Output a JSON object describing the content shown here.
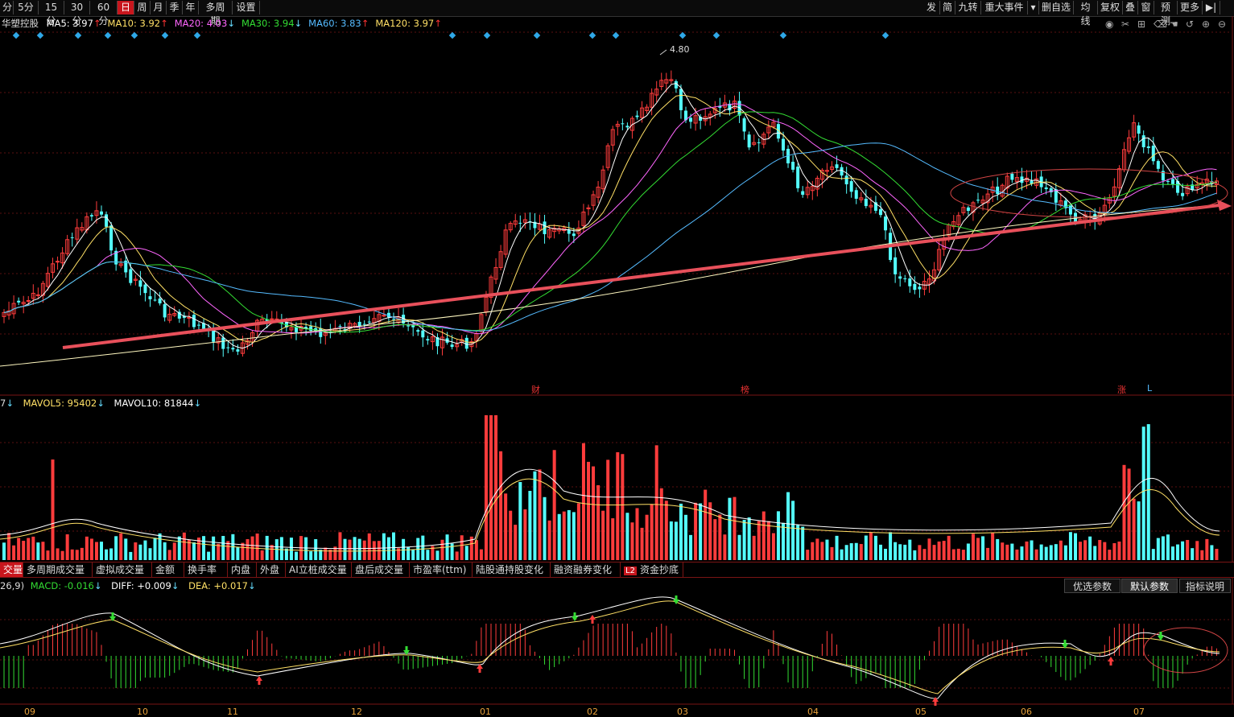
{
  "period_tabs": [
    {
      "label": "分",
      "active": false
    },
    {
      "label": "5分",
      "active": false
    },
    {
      "label": "15分",
      "active": false
    },
    {
      "label": "30分",
      "active": false
    },
    {
      "label": "60分",
      "active": false
    },
    {
      "label": "日",
      "active": true
    },
    {
      "label": "周",
      "active": false
    },
    {
      "label": "月",
      "active": false
    },
    {
      "label": "季",
      "active": false
    },
    {
      "label": "年",
      "active": false
    },
    {
      "label": "多周期",
      "active": false
    },
    {
      "label": "设置",
      "active": false
    }
  ],
  "right_toolbar": [
    "发",
    "简",
    "九转",
    "重大事件",
    "▾",
    "删自选",
    "均线",
    "复权",
    "叠",
    "窗",
    "预测",
    "更多",
    "▶|"
  ],
  "stock_name": "华塑控股",
  "ma_values": [
    {
      "label": "MA5: 3.97",
      "arrow": "↑",
      "color": "#ffffff",
      "arrow_color": "#ff3333"
    },
    {
      "label": "MA10: 3.92",
      "arrow": "↑",
      "color": "#ffe066",
      "arrow_color": "#ff3333"
    },
    {
      "label": "MA20: 4.03",
      "arrow": "↓",
      "color": "#ff66ff",
      "arrow_color": "#66ddff"
    },
    {
      "label": "MA30: 3.94",
      "arrow": "↓",
      "color": "#33dd33",
      "arrow_color": "#66ddff"
    },
    {
      "label": "MA60: 3.83",
      "arrow": "↑",
      "color": "#55bbff",
      "arrow_color": "#ff3333"
    },
    {
      "label": "MA120: 3.97",
      "arrow": "↑",
      "color": "#ffe066",
      "arrow_color": "#ff3333"
    }
  ],
  "chart_icons": [
    "eye-icon",
    "scissors-icon",
    "lock-icon",
    "trash-icon",
    "hand-icon",
    "undo-icon",
    "zoom-in-icon",
    "zoom-out-icon"
  ],
  "price_high_label": "4.80",
  "event_markers": [
    {
      "label": "财"
    },
    {
      "label": "榜"
    },
    {
      "label": "涨"
    },
    {
      "label": "L"
    }
  ],
  "volume_line": {
    "prefix": "7",
    "prefix_arrow": "↓",
    "mavol5": "MAVOL5: 95402",
    "mavol5_arrow": "↓",
    "mavol10": "MAVOL10: 81844",
    "mavol10_arrow": "↓"
  },
  "indicator_tabs": [
    {
      "label": "交量",
      "active": true
    },
    {
      "label": "多周期成交量",
      "active": false
    },
    {
      "label": "虚拟成交量",
      "active": false
    },
    {
      "label": "金额",
      "active": false
    },
    {
      "label": "换手率",
      "active": false
    },
    {
      "label": "内盘",
      "active": false
    },
    {
      "label": "外盘",
      "active": false
    },
    {
      "label": "AI立桩成交量",
      "active": false
    },
    {
      "label": "盘后成交量",
      "active": false
    },
    {
      "label": "市盈率(ttm)",
      "active": false
    },
    {
      "label": "陆股通持股变化",
      "active": false
    },
    {
      "label": "融资融券变化",
      "active": false
    },
    {
      "label": "资金抄底",
      "active": false
    }
  ],
  "l2_badge": "L2",
  "macd_line": {
    "prefix": "26,9)",
    "macd": "MACD: -0.016",
    "macd_arrow": "↓",
    "diff": "DIFF: +0.009",
    "diff_arrow": "↓",
    "dea": "DEA: +0.017",
    "dea_arrow": "↓"
  },
  "param_buttons": [
    {
      "label": "优选参数",
      "active": false
    },
    {
      "label": "默认参数",
      "active": true
    },
    {
      "label": "指标说明",
      "active": false
    }
  ],
  "x_axis_months": [
    "09",
    "10",
    "11",
    "12",
    "01",
    "02",
    "03",
    "04",
    "05",
    "06",
    "07"
  ],
  "colors": {
    "up": "#ff3c3c",
    "down": "#54ffff",
    "ma5": "#ffffff",
    "ma10": "#ffe066",
    "ma20": "#ff66ff",
    "ma30": "#33dd33",
    "ma60": "#55bbff",
    "trend": "#e8505b",
    "accent": "#c8161d"
  }
}
